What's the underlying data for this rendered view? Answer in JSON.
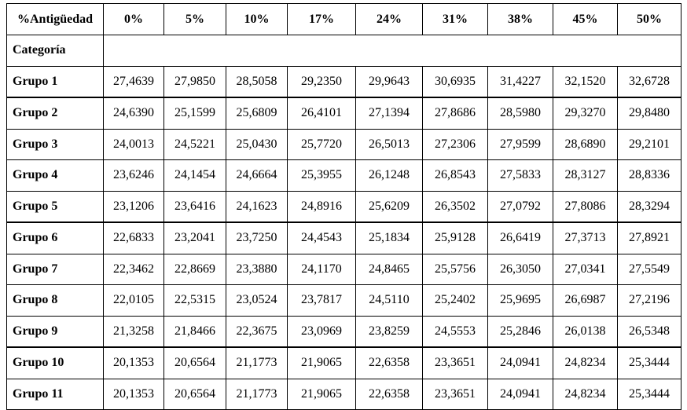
{
  "table": {
    "header": [
      "%Antigüedad",
      "0%",
      "5%",
      "10%",
      "17%",
      "24%",
      "31%",
      "38%",
      "45%",
      "50%"
    ],
    "category_label": "Categoría",
    "rows": [
      [
        "Grupo 1",
        "27,4639",
        "27,9850",
        "28,5058",
        "29,2350",
        "29,9643",
        "30,6935",
        "31,4227",
        "32,1520",
        "32,6728"
      ],
      [
        "Grupo 2",
        "24,6390",
        "25,1599",
        "25,6809",
        "26,4101",
        "27,1394",
        "27,8686",
        "28,5980",
        "29,3270",
        "29,8480"
      ],
      [
        "Grupo 3",
        "24,0013",
        "24,5221",
        "25,0430",
        "25,7720",
        "26,5013",
        "27,2306",
        "27,9599",
        "28,6890",
        "29,2101"
      ],
      [
        "Grupo 4",
        "23,6246",
        "24,1454",
        "24,6664",
        "25,3955",
        "26,1248",
        "26,8543",
        "27,5833",
        "28,3127",
        "28,8336"
      ],
      [
        "Grupo 5",
        "23,1206",
        "23,6416",
        "24,1623",
        "24,8916",
        "25,6209",
        "26,3502",
        "27,0792",
        "27,8086",
        "28,3294"
      ],
      [
        "Grupo 6",
        "22,6833",
        "23,2041",
        "23,7250",
        "24,4543",
        "25,1834",
        "25,9128",
        "26,6419",
        "27,3713",
        "27,8921"
      ],
      [
        "Grupo 7",
        "22,3462",
        "22,8669",
        "23,3880",
        "24,1170",
        "24,8465",
        "25,5756",
        "26,3050",
        "27,0341",
        "27,5549"
      ],
      [
        "Grupo 8",
        "22,0105",
        "22,5315",
        "23,0524",
        "23,7817",
        "24,5110",
        "25,2402",
        "25,9695",
        "26,6987",
        "27,2196"
      ],
      [
        "Grupo 9",
        "21,3258",
        "21,8466",
        "22,3675",
        "23,0969",
        "23,8259",
        "24,5553",
        "25,2846",
        "26,0138",
        "26,5348"
      ],
      [
        "Grupo 10",
        "20,1353",
        "20,6564",
        "21,1773",
        "21,9065",
        "22,6358",
        "23,3651",
        "24,0941",
        "24,8234",
        "25,3444"
      ],
      [
        "Grupo 11",
        "20,1353",
        "20,6564",
        "21,1773",
        "21,9065",
        "22,6358",
        "23,3651",
        "24,0941",
        "24,8234",
        "25,3444"
      ]
    ]
  }
}
